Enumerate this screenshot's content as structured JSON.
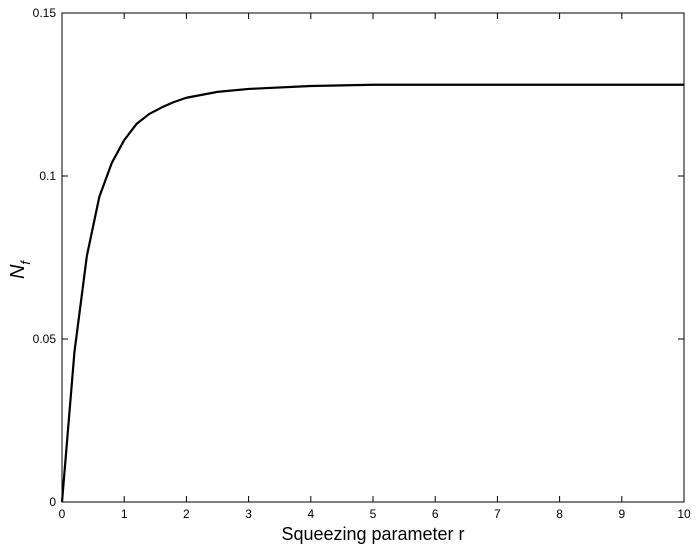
{
  "chart_data": {
    "type": "line",
    "xlabel": "Squeezing parameter r",
    "ylabel": "N",
    "ylabel_sub": "f",
    "x": [
      0,
      0.2,
      0.4,
      0.6,
      0.8,
      1.0,
      1.2,
      1.4,
      1.6,
      1.8,
      2.0,
      2.5,
      3,
      4,
      5,
      6,
      7,
      8,
      9,
      10
    ],
    "series": [
      {
        "color": "#000000",
        "values": [
          0,
          0.046,
          0.0755,
          0.0936,
          0.104,
          0.111,
          0.116,
          0.119,
          0.121,
          0.1227,
          0.124,
          0.1258,
          0.1267,
          0.1276,
          0.128,
          0.128,
          0.128,
          0.128,
          0.128,
          0.128
        ]
      }
    ],
    "xlim": [
      0,
      10
    ],
    "xticks": [
      0,
      1,
      2,
      3,
      4,
      5,
      6,
      7,
      8,
      9,
      10
    ],
    "ylim": [
      0,
      0.15
    ],
    "yticks": [
      0,
      0.05,
      0.1,
      0.15
    ],
    "grid": false
  }
}
